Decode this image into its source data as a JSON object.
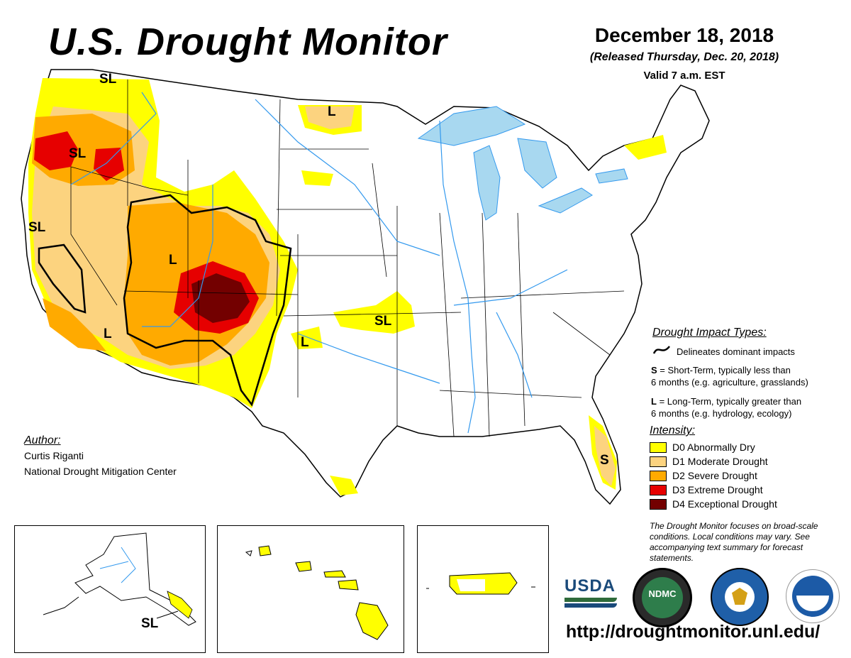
{
  "header": {
    "title": "U.S. Drought Monitor",
    "date": "December 18, 2018",
    "released": "(Released Thursday, Dec. 20, 2018)",
    "valid": "Valid 7 a.m. EST"
  },
  "author": {
    "heading": "Author:",
    "name": "Curtis Riganti",
    "org": "National Drought Mitigation Center"
  },
  "impact_types": {
    "heading": "Drought Impact Types:",
    "delineates": "Delineates dominant impacts",
    "s_key": "S",
    "s_text": "= Short-Term, typically less than",
    "s_text2": "6 months (e.g. agriculture, grasslands)",
    "l_key": "L",
    "l_text": "= Long-Term, typically greater than",
    "l_text2": "6 months (e.g. hydrology, ecology)"
  },
  "intensity": {
    "heading": "Intensity:",
    "items": [
      {
        "label": "D0 Abnormally Dry",
        "color": "#ffff00"
      },
      {
        "label": "D1 Moderate Drought",
        "color": "#fcd37f"
      },
      {
        "label": "D2 Severe Drought",
        "color": "#ffaa00"
      },
      {
        "label": "D3 Extreme Drought",
        "color": "#e60000"
      },
      {
        "label": "D4 Exceptional Drought",
        "color": "#730000"
      }
    ]
  },
  "note": "The Drought Monitor focuses on broad-scale conditions. Local conditions may vary. See accompanying text summary for forecast statements.",
  "logos": {
    "usda": "USDA",
    "ndmc": "NDMC"
  },
  "url": "http://droughtmonitor.unl.edu/",
  "map_labels": {
    "pnw_sl": "SL",
    "or_sl": "SL",
    "ca_sl": "SL",
    "mt_l": "L",
    "ut_l": "L",
    "az_l": "L",
    "nm_l": "L",
    "ks_sl": "SL",
    "fl_s": "S",
    "ak_sl": "SL"
  },
  "colors": {
    "water": "#a8d8f0",
    "river": "#3399ee",
    "border": "#000000"
  }
}
